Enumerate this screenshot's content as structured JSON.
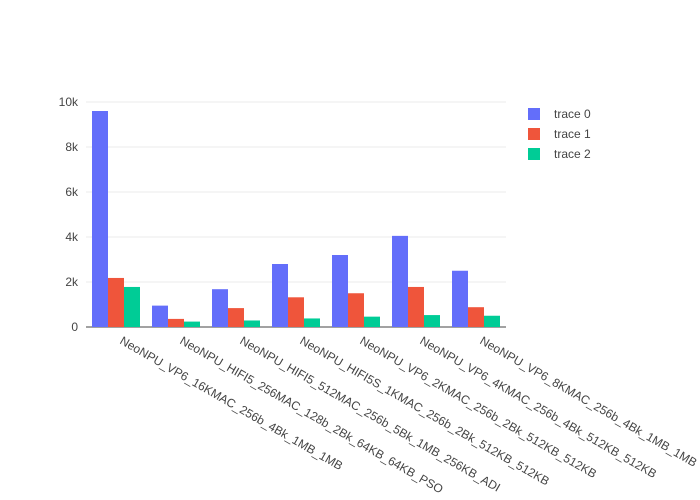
{
  "chart_data": {
    "type": "bar",
    "title": "",
    "xlabel": "",
    "ylabel": "",
    "ylim": [
      0,
      10000
    ],
    "yticks": [
      {
        "value": 0,
        "label": "0"
      },
      {
        "value": 2000,
        "label": "2k"
      },
      {
        "value": 4000,
        "label": "4k"
      },
      {
        "value": 6000,
        "label": "6k"
      },
      {
        "value": 8000,
        "label": "8k"
      },
      {
        "value": 10000,
        "label": "10k"
      }
    ],
    "grid": true,
    "legend_position": "top-right",
    "categories": [
      "NeoNPU_VP6_16KMAC_256b_4Bk_1MB_1MB",
      "NeoNPU_HIFI5_256MAC_128b_2Bk_64KB_64KB_PSO",
      "NeoNPU_HIFI5_512MAC_256b_5Bk_1MB_256KB_ADI",
      "NeoNPU_HIFI5S_1KMAC_256b_2Bk_512KB_512KB",
      "NeoNPU_VP6_2KMAC_256b_2Bk_512KB_512KB",
      "NeoNPU_VP6_4KMAC_256b_4Bk_512KB_512KB",
      "NeoNPU_VP6_8KMAC_256b_4Bk_1MB_1MB"
    ],
    "series": [
      {
        "name": "trace 0",
        "color": "#636efa",
        "values": [
          9600,
          950,
          1680,
          2800,
          3200,
          4050,
          2500
        ]
      },
      {
        "name": "trace 1",
        "color": "#ef553b",
        "values": [
          2180,
          360,
          840,
          1320,
          1500,
          1780,
          880
        ]
      },
      {
        "name": "trace 2",
        "color": "#00cc96",
        "values": [
          1780,
          240,
          290,
          380,
          460,
          530,
          500
        ]
      }
    ]
  }
}
